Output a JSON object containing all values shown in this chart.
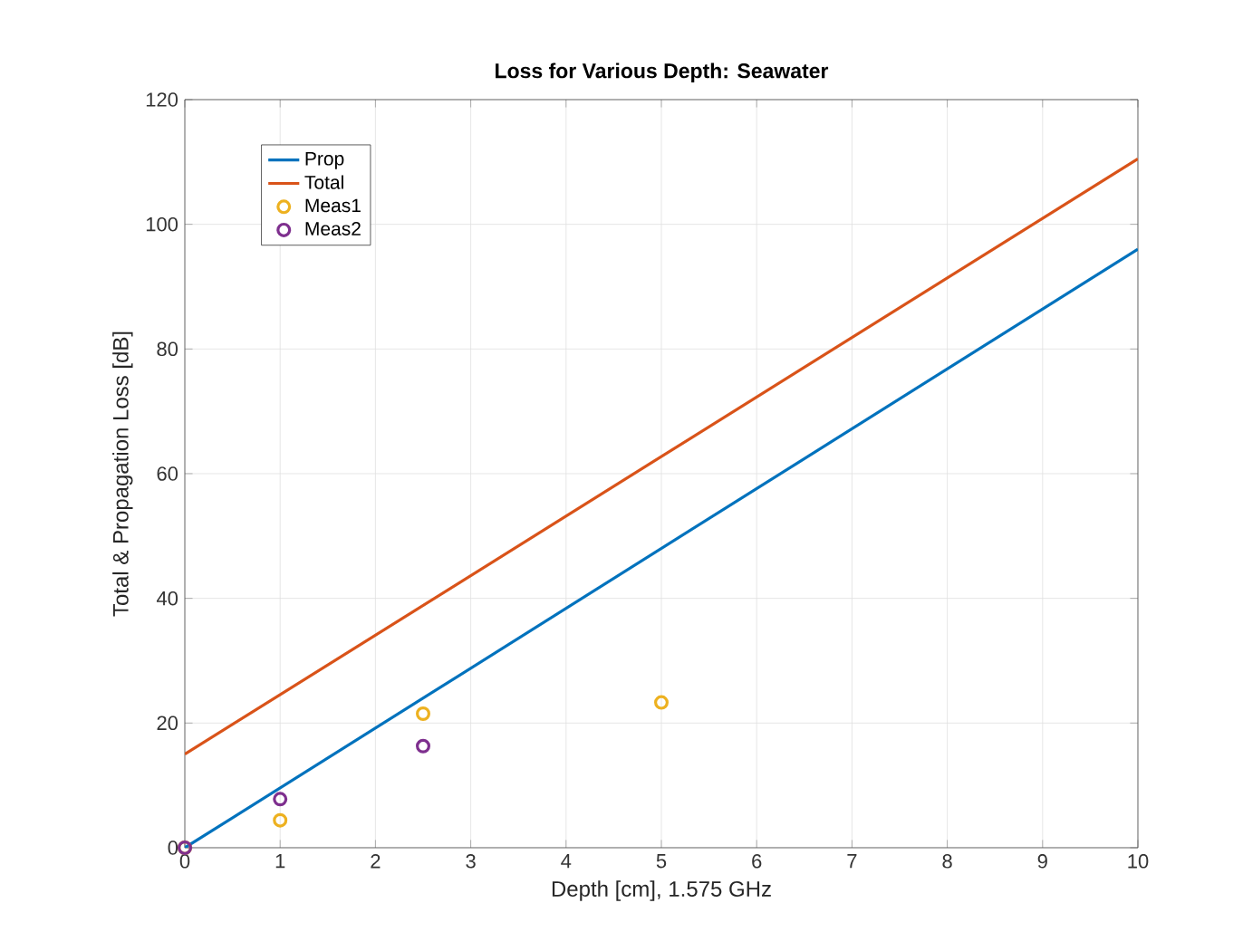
{
  "chart_data": {
    "type": "line",
    "title": "Loss for Various Depth: Seawater",
    "xlabel": "Depth [cm], 1.575 GHz",
    "ylabel": "Total & Propagation Loss [dB]",
    "xlim": [
      0,
      10
    ],
    "ylim": [
      0,
      120
    ],
    "xticks": [
      0,
      1,
      2,
      3,
      4,
      5,
      6,
      7,
      8,
      9,
      10
    ],
    "yticks": [
      0,
      20,
      40,
      60,
      80,
      100,
      120
    ],
    "grid": true,
    "legend": "top left",
    "series": [
      {
        "name": "Prop",
        "color": "#0072bd",
        "x": [
          0,
          10
        ],
        "values": [
          0,
          96
        ]
      },
      {
        "name": "Total",
        "color": "#d95319",
        "x": [
          0,
          10
        ],
        "values": [
          15,
          110.5
        ]
      },
      {
        "name": "Meas1",
        "type": "scatter",
        "marker": "circle",
        "color": "#edb120",
        "x": [
          0,
          1,
          2.5,
          5
        ],
        "values": [
          0,
          4.4,
          21.5,
          23.3
        ]
      },
      {
        "name": "Meas2",
        "type": "scatter",
        "marker": "circle",
        "color": "#7e2f8e",
        "x": [
          0,
          1,
          2.5
        ],
        "values": [
          0,
          7.8,
          16.3
        ]
      }
    ]
  }
}
